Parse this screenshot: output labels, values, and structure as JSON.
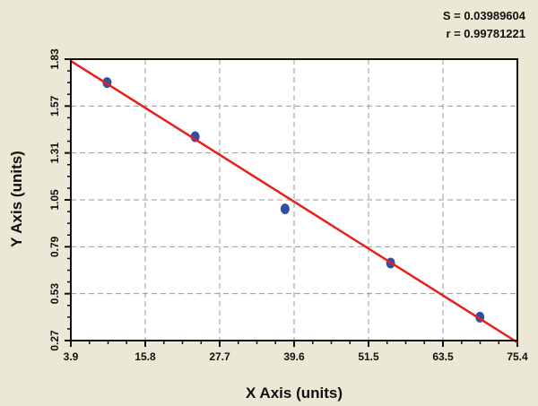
{
  "stats": {
    "s": "S = 0.03989604",
    "r": "r = 0.99781221"
  },
  "chart_data": {
    "type": "scatter",
    "title": "",
    "xlabel": "X Axis (units)",
    "ylabel": "Y Axis (units)",
    "xlim": [
      3.9,
      75.4
    ],
    "ylim": [
      0.27,
      1.83
    ],
    "xticks": [
      "3.9",
      "15.8",
      "27.7",
      "39.6",
      "51.5",
      "63.5",
      "75.4"
    ],
    "yticks": [
      "0.27",
      "0.53",
      "0.79",
      "1.05",
      "1.31",
      "1.57",
      "1.83"
    ],
    "grid": true,
    "points": [
      {
        "x": 9.7,
        "y": 1.7
      },
      {
        "x": 23.8,
        "y": 1.4
      },
      {
        "x": 38.2,
        "y": 1.0
      },
      {
        "x": 55.1,
        "y": 0.7
      },
      {
        "x": 69.4,
        "y": 0.4
      }
    ],
    "fit_line": {
      "x": [
        3.9,
        75.4
      ],
      "y": [
        1.82,
        0.26
      ]
    },
    "colors": {
      "points": "#2e4fa8",
      "fit_line": "#e8201c",
      "background": "#ebe8d6",
      "plot_area": "#ffffff"
    }
  }
}
